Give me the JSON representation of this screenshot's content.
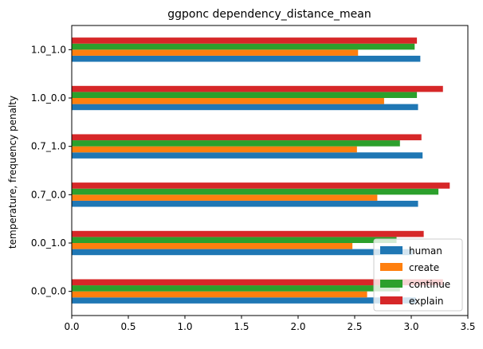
{
  "chart_data": {
    "type": "bar",
    "orientation": "horizontal",
    "title": "ggponc dependency_distance_mean",
    "xlabel": "",
    "ylabel": "temperature, frequency penalty",
    "categories": [
      "0.0_0.0",
      "0.0_1.0",
      "0.7_0.0",
      "0.7_1.0",
      "1.0_0.0",
      "1.0_1.0"
    ],
    "xlim": [
      0,
      3.5
    ],
    "xticks": [
      "0.0",
      "0.5",
      "1.0",
      "1.5",
      "2.0",
      "2.5",
      "3.0",
      "3.5"
    ],
    "grid": false,
    "legend_position": "bottom-right",
    "series": [
      {
        "name": "human",
        "color": "#1f77b4",
        "values": [
          3.04,
          3.01,
          3.06,
          3.1,
          3.06,
          3.08
        ]
      },
      {
        "name": "create",
        "color": "#ff7f0e",
        "values": [
          2.61,
          2.48,
          2.7,
          2.52,
          2.76,
          2.53
        ]
      },
      {
        "name": "continue",
        "color": "#2ca02c",
        "values": [
          2.9,
          2.87,
          3.24,
          2.9,
          3.05,
          3.03
        ]
      },
      {
        "name": "explain",
        "color": "#d62728",
        "values": [
          3.28,
          3.11,
          3.34,
          3.09,
          3.28,
          3.05
        ]
      }
    ]
  }
}
